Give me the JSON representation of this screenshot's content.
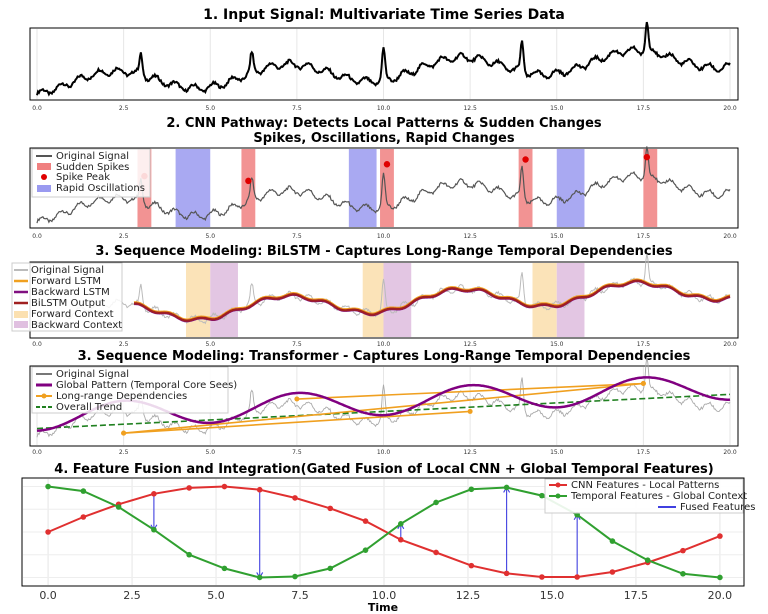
{
  "chart_data": [
    {
      "type": "line",
      "title": "1. Input Signal: Multivariate Time Series Data",
      "xlim": [
        0,
        20
      ],
      "ylim": [
        -0.6,
        2.4
      ],
      "x_ticks": [
        "0.0",
        "2.5",
        "5.0",
        "7.5",
        "10.0",
        "12.5",
        "15.0",
        "17.5",
        "20.0"
      ],
      "grid": true,
      "spikes_x": [
        3.0,
        6.2,
        10.0,
        14.0,
        17.6
      ],
      "series": [
        {
          "color": "#000000"
        }
      ]
    },
    {
      "type": "line",
      "title": "2. CNN Pathway: Detects Local Patterns & Sudden Changes",
      "subtitle": "Spikes, Oscillations, Rapid Changes",
      "xlim": [
        0,
        20
      ],
      "ylim": [
        -0.6,
        2.6
      ],
      "x_ticks": [
        "0.0",
        "2.5",
        "5.0",
        "7.5",
        "10.0",
        "12.5",
        "15.0",
        "17.5",
        "20.0"
      ],
      "legend_position": "top-left",
      "series": [
        {
          "name": "Original Signal",
          "color": "#555555"
        },
        {
          "name": "Sudden Spikes",
          "color": "#e02020"
        },
        {
          "name": "Spike Peak",
          "color": "#e00000"
        },
        {
          "name": "Rapid Oscillations",
          "color": "#3030e0"
        }
      ],
      "spike_regions": [
        [
          2.9,
          3.3
        ],
        [
          5.9,
          6.3
        ],
        [
          9.9,
          10.3
        ],
        [
          13.9,
          14.3
        ],
        [
          17.5,
          17.9
        ]
      ],
      "oscillation_regions": [
        [
          4.0,
          5.0
        ],
        [
          9.0,
          9.8
        ],
        [
          15.0,
          15.8
        ]
      ],
      "spike_peaks": [
        [
          3.1,
          1.5
        ],
        [
          6.1,
          1.3
        ],
        [
          10.1,
          2.0
        ],
        [
          14.1,
          2.2
        ],
        [
          17.6,
          2.3
        ]
      ]
    },
    {
      "type": "line",
      "title": "3. Sequence Modeling: BiLSTM - Captures Long-Range Temporal Dependencies",
      "xlim": [
        0,
        20
      ],
      "x_ticks": [
        "0.0",
        "2.5",
        "5.0",
        "7.5",
        "10.0",
        "12.5",
        "15.0",
        "17.5",
        "20.0"
      ],
      "legend_position": "top-left",
      "series": [
        {
          "name": "Original Signal",
          "color": "#bbbbbb"
        },
        {
          "name": "Forward LSTM",
          "color": "#f0a020"
        },
        {
          "name": "Backward LSTM",
          "color": "#801080"
        },
        {
          "name": "BiLSTM Output",
          "color": "#a02020"
        },
        {
          "name": "Forward Context",
          "color": "#fbe0b0"
        },
        {
          "name": "Backward Context",
          "color": "#e0c0e0"
        }
      ],
      "forward_context": [
        [
          4.3,
          5.0
        ],
        [
          9.4,
          10.0
        ],
        [
          14.3,
          15.0
        ]
      ],
      "backward_context": [
        [
          5.0,
          5.8
        ],
        [
          10.0,
          10.8
        ],
        [
          15.0,
          15.8
        ]
      ]
    },
    {
      "type": "line",
      "title": "3. Sequence Modeling: Transformer - Captures Long-Range Temporal Dependencies",
      "xlim": [
        0,
        20
      ],
      "x_ticks": [
        "0.0",
        "2.5",
        "5.0",
        "7.5",
        "10.0",
        "12.5",
        "15.0",
        "17.5",
        "20.0"
      ],
      "legend_position": "top-left",
      "series": [
        {
          "name": "Original Signal",
          "color": "#999999"
        },
        {
          "name": "Global Pattern (Temporal Core Sees)",
          "color": "#800080"
        },
        {
          "name": "Long-range Dependencies",
          "color": "#f0a020"
        },
        {
          "name": "Overall Trend",
          "color": "#208020"
        }
      ],
      "long_range_links": [
        [
          [
            2.5,
            -0.6
          ],
          [
            12.5,
            0.1
          ]
        ],
        [
          [
            2.5,
            -0.6
          ],
          [
            17.5,
            1.0
          ]
        ],
        [
          [
            7.5,
            0.5
          ],
          [
            17.5,
            1.0
          ]
        ]
      ]
    },
    {
      "type": "line",
      "title": "4. Feature Fusion and Integration(Gated Fusion of Local CNN + Global Temporal Features)",
      "xlabel": "Time",
      "xlim": [
        -0.3,
        20.3
      ],
      "ylim": [
        -1.1,
        1.1
      ],
      "x_ticks": [
        "0.0",
        "2.5",
        "5.0",
        "7.5",
        "10.0",
        "12.5",
        "15.0",
        "17.5",
        "20.0"
      ],
      "legend_position": "top-right",
      "series": [
        {
          "name": "CNN Features - Local Patterns",
          "color": "#e03030",
          "x": [
            0.0,
            1.05,
            2.1,
            3.15,
            4.2,
            5.25,
            6.3,
            7.35,
            8.4,
            9.45,
            10.5,
            11.55,
            12.6,
            13.65,
            14.7,
            15.75,
            16.8,
            17.85,
            18.9,
            20.0
          ],
          "values": [
            0.0,
            0.33,
            0.61,
            0.84,
            0.97,
            1.0,
            0.93,
            0.75,
            0.52,
            0.24,
            -0.17,
            -0.45,
            -0.74,
            -0.91,
            -0.99,
            -0.99,
            -0.88,
            -0.67,
            -0.41,
            -0.09
          ]
        },
        {
          "name": "Temporal Features - Global Context",
          "color": "#30a030",
          "x": [
            0.0,
            1.05,
            2.1,
            3.15,
            4.2,
            5.25,
            6.3,
            7.35,
            8.4,
            9.45,
            10.5,
            11.55,
            12.6,
            13.65,
            14.7,
            15.75,
            16.8,
            17.85,
            18.9,
            20.0
          ],
          "values": [
            1.0,
            0.9,
            0.55,
            0.05,
            -0.5,
            -0.8,
            -1.0,
            -0.98,
            -0.8,
            -0.4,
            0.18,
            0.65,
            0.94,
            0.98,
            0.8,
            0.38,
            -0.2,
            -0.62,
            -0.92,
            -1.0
          ]
        },
        {
          "name": "Fused Features",
          "color": "#4040e0",
          "links_x": [
            3.15,
            6.3,
            10.5,
            13.65,
            15.75
          ]
        }
      ]
    }
  ]
}
